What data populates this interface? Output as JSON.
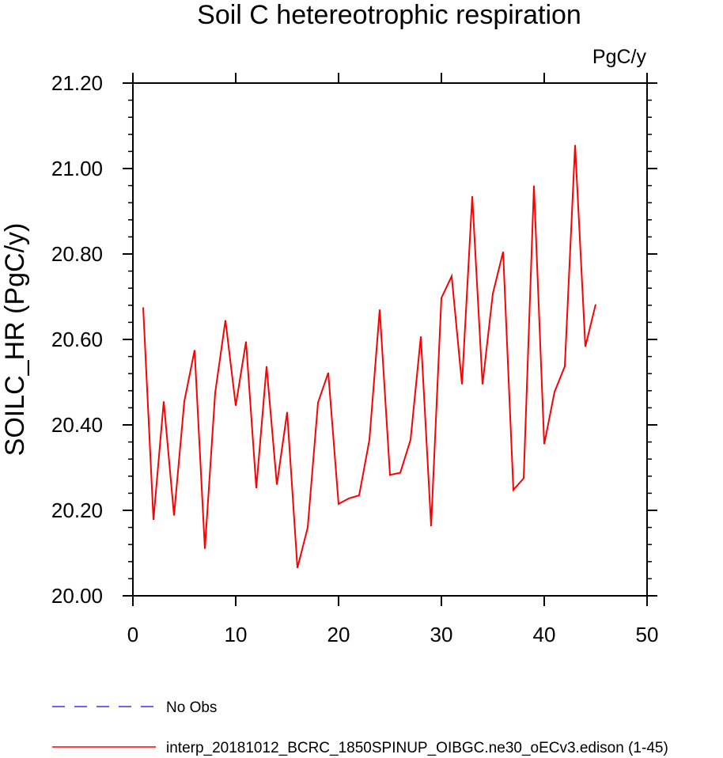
{
  "chart_data": {
    "type": "line",
    "title": "Soil C hetereotrophic respiration",
    "units": "PgC/y",
    "ylabel": "SOILC_HR  (PgC/y)",
    "xlabel": "",
    "xlim": [
      0,
      50
    ],
    "ylim": [
      20.0,
      21.2
    ],
    "x_ticks": [
      0,
      10,
      20,
      30,
      40,
      50
    ],
    "x_tick_labels": [
      "0",
      "10",
      "20",
      "30",
      "40",
      "50"
    ],
    "y_ticks": [
      20.0,
      20.2,
      20.4,
      20.6,
      20.8,
      21.0,
      21.2
    ],
    "y_tick_labels": [
      "20.00",
      "20.20",
      "20.40",
      "20.60",
      "20.80",
      "21.00",
      "21.20"
    ],
    "grid": false,
    "legend_position": "bottom-left",
    "series": [
      {
        "name": "interp_20181012_BCRC_1850SPINUP_OIBGC.ne30_oECv3.edison (1-45)",
        "color": "#ff0000",
        "style": "solid",
        "x": [
          1,
          2,
          3,
          4,
          5,
          6,
          7,
          8,
          9,
          10,
          11,
          12,
          13,
          14,
          15,
          16,
          17,
          18,
          19,
          20,
          21,
          22,
          23,
          24,
          25,
          26,
          27,
          28,
          29,
          30,
          31,
          32,
          33,
          34,
          35,
          36,
          37,
          38,
          39,
          40,
          41,
          42,
          43,
          44,
          45
        ],
        "values": [
          20.675,
          20.178,
          20.455,
          20.188,
          20.455,
          20.575,
          20.11,
          20.475,
          20.645,
          20.445,
          20.595,
          20.252,
          20.537,
          20.26,
          20.43,
          20.065,
          20.16,
          20.452,
          20.522,
          20.215,
          20.228,
          20.235,
          20.365,
          20.67,
          20.283,
          20.288,
          20.365,
          20.607,
          20.163,
          20.697,
          20.748,
          20.495,
          20.935,
          20.495,
          20.707,
          20.805,
          20.248,
          20.275,
          20.96,
          20.355,
          20.477,
          20.537,
          21.055,
          20.583,
          20.682
        ]
      }
    ],
    "legend": [
      {
        "label": "No Obs",
        "color": "#3333ff",
        "style": "dashed"
      },
      {
        "label": "interp_20181012_BCRC_1850SPINUP_OIBGC.ne30_oECv3.edison (1-45)",
        "color": "#ff0000",
        "style": "solid"
      }
    ]
  }
}
